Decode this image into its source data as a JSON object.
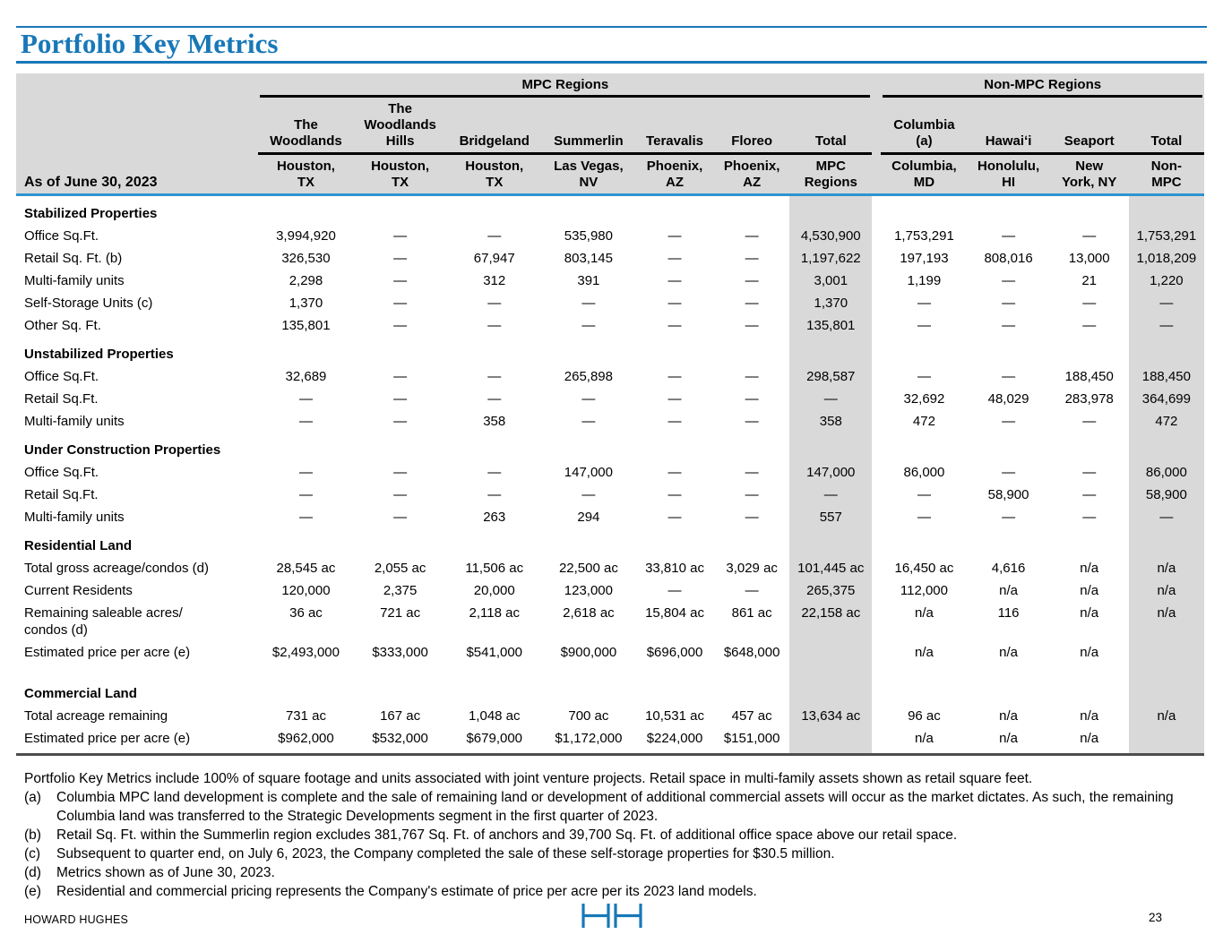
{
  "title": "Portfolio Key Metrics",
  "table": {
    "as_of_label": "As of June 30, 2023",
    "groups": [
      {
        "label": "MPC Regions"
      },
      {
        "label": "Non-MPC Regions"
      }
    ],
    "columns": [
      {
        "region": "The\nWoodlands",
        "location": "Houston,\nTX"
      },
      {
        "region": "The\nWoodlands\nHills",
        "location": "Houston,\nTX"
      },
      {
        "region": "Bridgeland",
        "location": "Houston,\nTX"
      },
      {
        "region": "Summerlin",
        "location": "Las Vegas,\nNV"
      },
      {
        "region": "Teravalis",
        "location": "Phoenix,\nAZ"
      },
      {
        "region": "Floreo",
        "location": "Phoenix,\nAZ"
      },
      {
        "region": "Total",
        "location": "MPC\nRegions"
      },
      {
        "region": "Columbia\n(a)",
        "location": "Columbia,\nMD"
      },
      {
        "region": "Hawaiʻi",
        "location": "Honolulu,\nHI"
      },
      {
        "region": "Seaport",
        "location": "New\nYork, NY"
      },
      {
        "region": "Total",
        "location": "Non-\nMPC"
      }
    ],
    "sections": [
      {
        "title": "Stabilized Properties",
        "rows": [
          {
            "label": "Office Sq.Ft.",
            "values": [
              "3,994,920",
              "—",
              "—",
              "535,980",
              "—",
              "—",
              "4,530,900",
              "1,753,291",
              "—",
              "—",
              "1,753,291"
            ]
          },
          {
            "label": "Retail Sq. Ft. (b)",
            "values": [
              "326,530",
              "—",
              "67,947",
              "803,145",
              "—",
              "—",
              "1,197,622",
              "197,193",
              "808,016",
              "13,000",
              "1,018,209"
            ]
          },
          {
            "label": "Multi-family units",
            "values": [
              "2,298",
              "—",
              "312",
              "391",
              "—",
              "—",
              "3,001",
              "1,199",
              "—",
              "21",
              "1,220"
            ]
          },
          {
            "label": "Self-Storage Units (c)",
            "values": [
              "1,370",
              "—",
              "—",
              "—",
              "—",
              "—",
              "1,370",
              "—",
              "—",
              "—",
              "—"
            ]
          },
          {
            "label": "Other Sq. Ft.",
            "values": [
              "135,801",
              "—",
              "—",
              "—",
              "—",
              "—",
              "135,801",
              "—",
              "—",
              "—",
              "—"
            ]
          }
        ]
      },
      {
        "title": "Unstabilized Properties",
        "rows": [
          {
            "label": "Office Sq.Ft.",
            "values": [
              "32,689",
              "—",
              "—",
              "265,898",
              "—",
              "—",
              "298,587",
              "—",
              "—",
              "188,450",
              "188,450"
            ]
          },
          {
            "label": "Retail Sq.Ft.",
            "values": [
              "—",
              "—",
              "—",
              "—",
              "—",
              "—",
              "—",
              "32,692",
              "48,029",
              "283,978",
              "364,699"
            ]
          },
          {
            "label": "Multi-family units",
            "values": [
              "—",
              "—",
              "358",
              "—",
              "—",
              "—",
              "358",
              "472",
              "—",
              "—",
              "472"
            ]
          }
        ]
      },
      {
        "title": "Under Construction Properties",
        "rows": [
          {
            "label": "Office Sq.Ft.",
            "values": [
              "—",
              "—",
              "—",
              "147,000",
              "—",
              "—",
              "147,000",
              "86,000",
              "—",
              "—",
              "86,000"
            ]
          },
          {
            "label": "Retail Sq.Ft.",
            "values": [
              "—",
              "—",
              "—",
              "—",
              "—",
              "—",
              "—",
              "—",
              "58,900",
              "—",
              "58,900"
            ]
          },
          {
            "label": "Multi-family units",
            "values": [
              "—",
              "—",
              "263",
              "294",
              "—",
              "—",
              "557",
              "—",
              "—",
              "—",
              "—"
            ]
          }
        ]
      },
      {
        "title": "Residential Land",
        "rows": [
          {
            "label": "Total gross acreage/condos (d)",
            "values": [
              "28,545 ac",
              "2,055 ac",
              "11,506 ac",
              "22,500 ac",
              "33,810 ac",
              "3,029 ac",
              "101,445 ac",
              "16,450 ac",
              "4,616",
              "n/a",
              "n/a"
            ]
          },
          {
            "label": "Current Residents",
            "values": [
              "120,000",
              "2,375",
              "20,000",
              "123,000",
              "—",
              "—",
              "265,375",
              "112,000",
              "n/a",
              "n/a",
              "n/a"
            ]
          },
          {
            "label": "Remaining saleable acres/\ncondos (d)",
            "values": [
              "36 ac",
              "721 ac",
              "2,118 ac",
              "2,618 ac",
              "15,804 ac",
              "861 ac",
              "22,158 ac",
              "n/a",
              "116",
              "n/a",
              "n/a"
            ]
          },
          {
            "label": "Estimated price per acre (e)",
            "values": [
              "$2,493,000",
              "$333,000",
              "$541,000",
              "$900,000",
              "$696,000",
              "$648,000",
              "",
              "n/a",
              "n/a",
              "n/a",
              ""
            ]
          }
        ]
      },
      {
        "title": "Commercial Land",
        "extra_space": true,
        "rows": [
          {
            "label": "Total acreage remaining",
            "values": [
              "731 ac",
              "167 ac",
              "1,048 ac",
              "700 ac",
              "10,531 ac",
              "457 ac",
              "13,634 ac",
              "96 ac",
              "n/a",
              "n/a",
              "n/a"
            ]
          },
          {
            "label": "Estimated price per acre (e)",
            "values": [
              "$962,000",
              "$532,000",
              "$679,000",
              "$1,172,000",
              "$224,000",
              "$151,000",
              "",
              "n/a",
              "n/a",
              "n/a",
              ""
            ]
          }
        ]
      }
    ]
  },
  "footnotes": {
    "intro": "Portfolio Key Metrics include 100% of square footage and units associated with joint venture projects. Retail space in multi-family assets shown as retail square feet.",
    "items": [
      {
        "label": "(a)",
        "text": "Columbia MPC land development is complete and the sale of remaining land or development of additional commercial assets will occur as the market dictates. As such, the remaining Columbia land was transferred to the Strategic Developments segment in the first quarter of 2023."
      },
      {
        "label": "(b)",
        "text": "Retail Sq. Ft. within the Summerlin region excludes 381,767 Sq. Ft. of anchors and 39,700 Sq. Ft. of additional office space above our retail space."
      },
      {
        "label": "(c)",
        "text": "Subsequent to quarter end, on July 6, 2023, the Company completed the sale of these self-storage properties for $30.5 million."
      },
      {
        "label": "(d)",
        "text": "Metrics shown as of June 30, 2023."
      },
      {
        "label": "(e)",
        "text": "Residential and commercial pricing represents the Company's estimate of price per acre per its 2023 land models."
      }
    ]
  },
  "footer": {
    "company": "HOWARD HUGHES",
    "page_number": "23",
    "accent_color": "#1878b8"
  }
}
